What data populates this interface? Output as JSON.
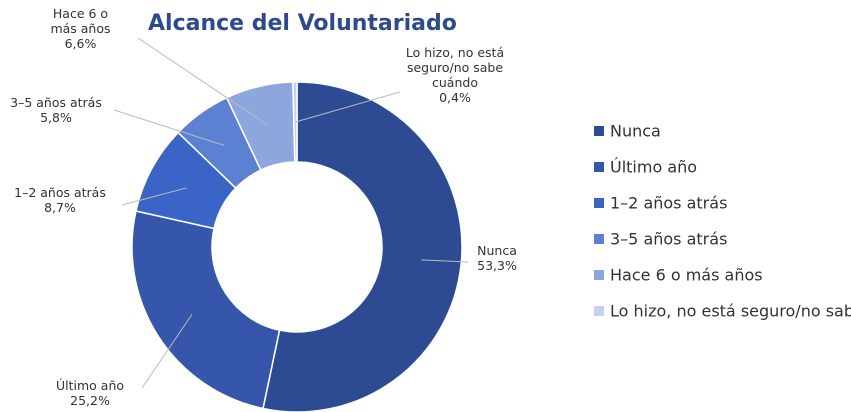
{
  "chart_data": {
    "type": "donut",
    "title": "Alcance del Voluntariado",
    "categories": [
      "Nunca",
      "Último año",
      "1–2 años atrás",
      "3–5 años atrás",
      "Hace 6 o más años",
      "Lo hizo, no está seguro/no sabe cuándo"
    ],
    "values": [
      53.3,
      25.2,
      8.7,
      5.8,
      6.6,
      0.4
    ],
    "value_labels": [
      "53,3%",
      "25,2%",
      "8,7%",
      "5,8%",
      "6,6%",
      "0,4%"
    ],
    "colors": [
      "#2d4b93",
      "#3556aa",
      "#3a64c6",
      "#5c80d2",
      "#8ea6de",
      "#c6d1ef"
    ],
    "legend": "right"
  }
}
